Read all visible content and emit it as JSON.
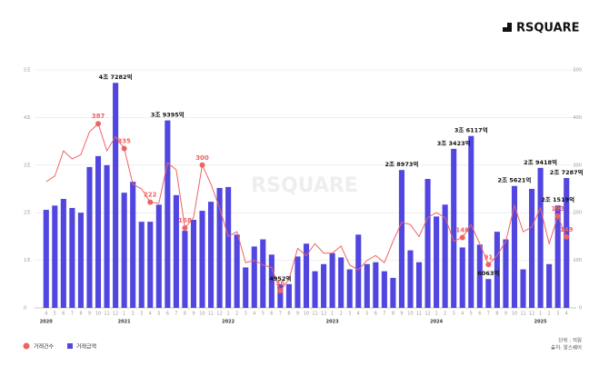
{
  "brand": "RSQUARE",
  "chart_data": {
    "type": "bar-line",
    "categories": [
      "4",
      "5",
      "6",
      "7",
      "8",
      "9",
      "10",
      "11",
      "12",
      "1",
      "2",
      "3",
      "4",
      "5",
      "6",
      "7",
      "8",
      "9",
      "10",
      "11",
      "12",
      "1",
      "2",
      "3",
      "4",
      "5",
      "6",
      "7",
      "8",
      "9",
      "10",
      "11",
      "12",
      "1",
      "2",
      "3",
      "4",
      "5",
      "6",
      "7",
      "8",
      "9",
      "10",
      "11",
      "12",
      "1",
      "2",
      "3",
      "4",
      "5",
      "6",
      "7",
      "8",
      "9",
      "10",
      "11",
      "12",
      "1",
      "2",
      "3",
      "4"
    ],
    "year_groups": [
      {
        "label": "2020",
        "count": 9
      },
      {
        "label": "2021",
        "count": 12
      },
      {
        "label": "2022",
        "count": 12
      },
      {
        "label": "2023",
        "count": 12
      },
      {
        "label": "2024",
        "count": 12
      },
      {
        "label": "2025",
        "count": 4
      }
    ],
    "series": [
      {
        "name": "거래금액",
        "color": "#5246e0",
        "axis": "y",
        "values": [
          20600,
          21500,
          22900,
          21000,
          20000,
          29600,
          31900,
          30000,
          47282,
          24200,
          26500,
          18100,
          18100,
          21700,
          39395,
          23700,
          16200,
          18500,
          20400,
          22300,
          25200,
          25400,
          15400,
          8500,
          12900,
          14400,
          11200,
          4952,
          5000,
          10800,
          13500,
          7700,
          9200,
          11500,
          10600,
          8100,
          15400,
          9200,
          9600,
          7700,
          6300,
          28973,
          12100,
          9600,
          27100,
          19200,
          21700,
          33423,
          12700,
          36117,
          13300,
          6063,
          16000,
          14400,
          25621,
          8100,
          25000,
          29418,
          9200,
          21519,
          27287
        ],
        "value_labels": [
          null,
          null,
          null,
          null,
          null,
          null,
          null,
          null,
          "4조 7282억",
          null,
          null,
          null,
          null,
          null,
          "3조 9395억",
          null,
          null,
          null,
          null,
          null,
          null,
          null,
          null,
          null,
          null,
          null,
          null,
          "4952억",
          null,
          null,
          null,
          null,
          null,
          null,
          null,
          null,
          null,
          null,
          null,
          null,
          null,
          "2조 8973억",
          null,
          null,
          null,
          null,
          null,
          "3조 3423억",
          null,
          "3조 6117억",
          null,
          "6063억",
          null,
          null,
          "2조 5621억",
          null,
          null,
          "2조 9418억",
          null,
          "2조 1519억",
          "2조 7287억"
        ]
      },
      {
        "name": "거래건수",
        "color": "#f06262",
        "axis": "y2",
        "values": [
          265,
          277,
          330,
          313,
          322,
          370,
          387,
          330,
          360,
          335,
          260,
          250,
          222,
          220,
          305,
          290,
          168,
          190,
          300,
          260,
          210,
          150,
          160,
          95,
          100,
          90,
          85,
          36,
          60,
          125,
          110,
          135,
          115,
          115,
          130,
          90,
          80,
          100,
          110,
          95,
          140,
          180,
          175,
          150,
          190,
          200,
          190,
          140,
          148,
          175,
          135,
          91,
          110,
          140,
          215,
          160,
          170,
          210,
          135,
          193,
          149
        ],
        "value_labels": [
          null,
          null,
          null,
          null,
          null,
          null,
          "387",
          null,
          null,
          "335",
          null,
          null,
          "222",
          null,
          null,
          null,
          "168",
          null,
          "300",
          null,
          null,
          null,
          null,
          null,
          null,
          null,
          null,
          "36",
          null,
          null,
          null,
          null,
          null,
          null,
          null,
          null,
          null,
          null,
          null,
          null,
          null,
          null,
          null,
          null,
          null,
          null,
          null,
          null,
          "148",
          null,
          null,
          "91",
          null,
          null,
          null,
          null,
          null,
          null,
          null,
          "193",
          "149"
        ]
      }
    ],
    "ylim": [
      0,
      50000
    ],
    "yticks": [
      {
        "value": 0,
        "label": "0"
      },
      {
        "value": 10000,
        "label": "1조"
      },
      {
        "value": 20000,
        "label": "2조"
      },
      {
        "value": 30000,
        "label": "3조"
      },
      {
        "value": 40000,
        "label": "4조"
      },
      {
        "value": 50000,
        "label": "5조"
      }
    ],
    "y2lim": [
      0,
      500
    ],
    "y2ticks": [
      0,
      100,
      200,
      300,
      400,
      500
    ],
    "grid": true,
    "unit_note": "단위 : 억원",
    "source_note": "출처: 알스퀘어"
  }
}
